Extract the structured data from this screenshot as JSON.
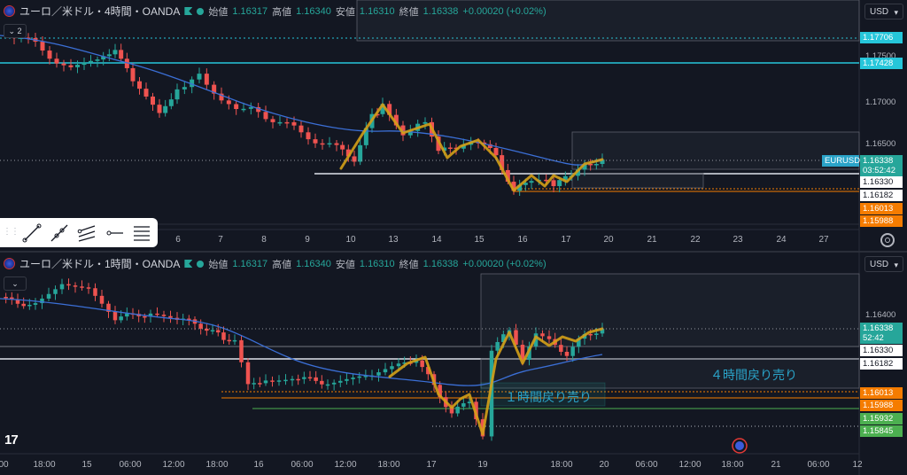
{
  "top": {
    "symbol": "ユーロ／米ドル・4時間・OANDA",
    "ohlc": {
      "o_label": "始値",
      "o": "1.16317",
      "h_label": "高値",
      "h": "1.16340",
      "l_label": "安値",
      "l": "1.16310",
      "c_label": "終値",
      "c": "1.16338",
      "chg": "+0.00020 (+0.02%)"
    },
    "currency": "USD",
    "indicator_count": "2",
    "price_ticks": [
      "1.17500",
      "1.17000",
      "1.16500"
    ],
    "price_labels": [
      {
        "text": "1.17706",
        "kind": "cyan"
      },
      {
        "text": "1.17428",
        "kind": "cyan"
      },
      {
        "text": "EURUSD",
        "kind": "tag"
      },
      {
        "text": "1.16338",
        "kind": "green"
      },
      {
        "text": "03:52:42",
        "kind": "green"
      },
      {
        "text": "1.16330",
        "kind": "white"
      },
      {
        "text": "1.16182",
        "kind": "white"
      },
      {
        "text": "1.16013",
        "kind": "orange"
      },
      {
        "text": "1.15988",
        "kind": "orange"
      }
    ],
    "time_ticks": [
      "6",
      "7",
      "8",
      "9",
      "10",
      "13",
      "14",
      "15",
      "16",
      "17",
      "20",
      "21",
      "22",
      "23",
      "24",
      "27"
    ],
    "toolbar_tools": [
      "trend-line-tool",
      "ray-tool",
      "parallel-channel-tool",
      "horizontal-ray-tool",
      "fib-retracement-tool"
    ]
  },
  "bottom": {
    "symbol": "ユーロ／米ドル・1時間・OANDA",
    "ohlc": {
      "o_label": "始値",
      "o": "1.16317",
      "h_label": "高値",
      "h": "1.16340",
      "l_label": "安値",
      "l": "1.16310",
      "c_label": "終値",
      "c": "1.16338",
      "chg": "+0.00020 (+0.02%)"
    },
    "currency": "USD",
    "price_ticks": [
      "1.16400"
    ],
    "price_labels": [
      {
        "text": "1.16338",
        "kind": "green"
      },
      {
        "text": "52:42",
        "kind": "green"
      },
      {
        "text": "1.16330",
        "kind": "white"
      },
      {
        "text": "1.16182",
        "kind": "white"
      },
      {
        "text": "1.16013",
        "kind": "orange"
      },
      {
        "text": "1.15988",
        "kind": "orange"
      },
      {
        "text": "1.15932",
        "kind": "lime"
      },
      {
        "text": "1.15845",
        "kind": "lime"
      }
    ],
    "time_ticks": [
      "00",
      "18:00",
      "15",
      "06:00",
      "12:00",
      "18:00",
      "16",
      "06:00",
      "12:00",
      "18:00",
      "17",
      "19",
      "18:00",
      "20",
      "06:00",
      "12:00",
      "18:00",
      "21",
      "06:00",
      "12"
    ],
    "annotation_4h": "４時間戻り売り",
    "annotation_1h": "１時間戻り売り",
    "logo": "17"
  },
  "colors": {
    "up": "#26a69a",
    "down": "#ef5350",
    "ma": "#3b6fd6",
    "zigzag": "#d4a017",
    "cyan": "#26c6da",
    "orange": "#f57c00",
    "lime": "#4caf50"
  }
}
